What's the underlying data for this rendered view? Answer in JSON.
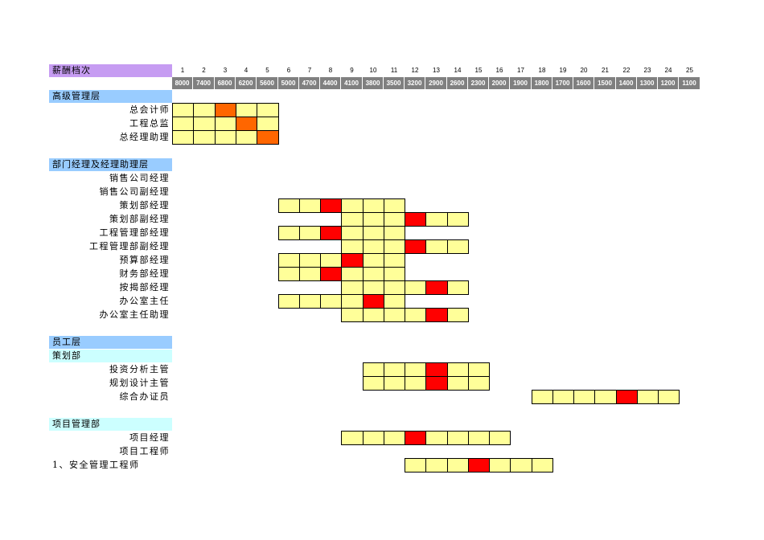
{
  "header": {
    "title": "薪酬档次",
    "grades": [
      "1",
      "2",
      "3",
      "4",
      "5",
      "6",
      "7",
      "8",
      "9",
      "10",
      "11",
      "12",
      "13",
      "14",
      "15",
      "16",
      "17",
      "18",
      "19",
      "20",
      "21",
      "22",
      "23",
      "24",
      "25"
    ],
    "salaries": [
      "8000",
      "7400",
      "6800",
      "6200",
      "5600",
      "5000",
      "4700",
      "4400",
      "4100",
      "3800",
      "3500",
      "3200",
      "2900",
      "2600",
      "2300",
      "2000",
      "1900",
      "1800",
      "1700",
      "1600",
      "1500",
      "1400",
      "1300",
      "1200",
      "1100"
    ]
  },
  "colors": {
    "title_bg": "#c69cf2",
    "section_bg": "#99ccff",
    "subsection_bg": "#ccffff",
    "cell_fill": "#ffff99",
    "highlight_orange": "#ff6600",
    "highlight_red": "#ff0000",
    "salary_bar_bg": "#808080"
  },
  "rows": [
    {
      "kind": "section",
      "label": "高级管理层"
    },
    {
      "kind": "item",
      "label": "总会计师",
      "start": 1,
      "end": 5,
      "mark": 3,
      "color": "orange"
    },
    {
      "kind": "item",
      "label": "工程总监",
      "start": 1,
      "end": 5,
      "mark": 4,
      "color": "orange"
    },
    {
      "kind": "item",
      "label": "总经理助理",
      "start": 1,
      "end": 5,
      "mark": 5,
      "color": "orange"
    },
    {
      "kind": "blank"
    },
    {
      "kind": "section",
      "label": "部门经理及经理助理层"
    },
    {
      "kind": "item",
      "label": "销售公司经理"
    },
    {
      "kind": "item",
      "label": "销售公司副经理"
    },
    {
      "kind": "item",
      "label": "策划部经理",
      "start": 6,
      "end": 11,
      "mark": 8,
      "color": "red"
    },
    {
      "kind": "item",
      "label": "策划部副经理",
      "start": 9,
      "end": 14,
      "mark": 12,
      "color": "red"
    },
    {
      "kind": "item",
      "label": "工程管理部经理",
      "start": 6,
      "end": 11,
      "mark": 8,
      "color": "red"
    },
    {
      "kind": "item",
      "label": "工程管理部副经理",
      "start": 9,
      "end": 14,
      "mark": 12,
      "color": "red"
    },
    {
      "kind": "item",
      "label": "预算部经理",
      "start": 6,
      "end": 11,
      "mark": 9,
      "color": "red"
    },
    {
      "kind": "item",
      "label": "财务部经理",
      "start": 6,
      "end": 11,
      "mark": 8,
      "color": "red"
    },
    {
      "kind": "item",
      "label": "按揭部经理",
      "start": 9,
      "end": 14,
      "mark": 13,
      "color": "red"
    },
    {
      "kind": "item",
      "label": "办公室主任",
      "start": 6,
      "end": 11,
      "mark": 10,
      "color": "red"
    },
    {
      "kind": "item",
      "label": "办公室主任助理",
      "start": 9,
      "end": 14,
      "mark": 13,
      "color": "red"
    },
    {
      "kind": "blank"
    },
    {
      "kind": "section",
      "label": "员工层"
    },
    {
      "kind": "subsection",
      "label": "策划部"
    },
    {
      "kind": "item",
      "label": "投资分析主管",
      "start": 10,
      "end": 15,
      "mark": 13,
      "color": "red"
    },
    {
      "kind": "item",
      "label": "规划设计主管",
      "start": 10,
      "end": 15,
      "mark": 13,
      "color": "red"
    },
    {
      "kind": "item",
      "label": "综合办证员",
      "start": 18,
      "end": 24,
      "mark": 22,
      "color": "red"
    },
    {
      "kind": "blank"
    },
    {
      "kind": "subsection",
      "label": "项目管理部"
    },
    {
      "kind": "item",
      "label": "项目经理",
      "start": 9,
      "end": 16,
      "mark": 12,
      "color": "red"
    },
    {
      "kind": "item",
      "label": "项目工程师"
    },
    {
      "kind": "item",
      "label": "1、安全管理工程师",
      "align": "left",
      "start": 12,
      "end": 18,
      "mark": 15,
      "color": "red"
    }
  ]
}
